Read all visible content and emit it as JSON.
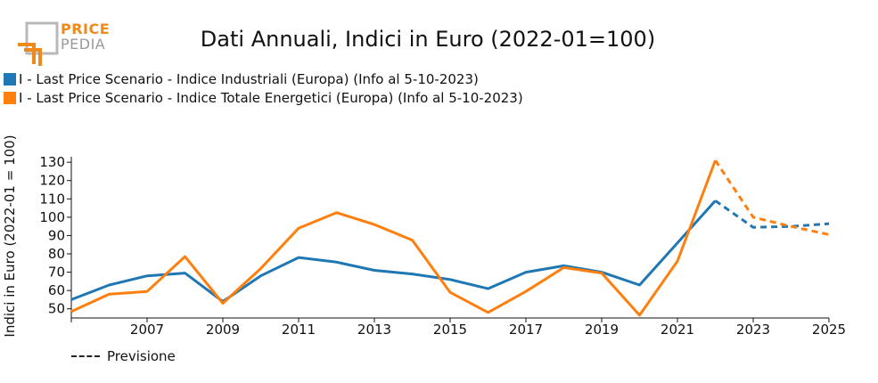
{
  "logo": {
    "line1": "PRICE",
    "line2": "PEDIA"
  },
  "chart_data": {
    "type": "line",
    "title": "Dati Annuali, Indici in Euro (2022-01=100)",
    "ylabel": "Indici in Euro (2022-01 = 100)",
    "xlabel": "",
    "xlim": [
      2005,
      2025
    ],
    "ylim": [
      45,
      133
    ],
    "x_ticks": [
      2007,
      2009,
      2011,
      2013,
      2015,
      2017,
      2019,
      2021,
      2023,
      2025
    ],
    "y_ticks": [
      50,
      60,
      70,
      80,
      90,
      100,
      110,
      120,
      130
    ],
    "grid": false,
    "legend_position": "top-left",
    "forecast_start": 2022,
    "forecast_note": "Previsione",
    "x": [
      2005,
      2006,
      2007,
      2008,
      2009,
      2010,
      2011,
      2012,
      2013,
      2014,
      2015,
      2016,
      2017,
      2018,
      2019,
      2020,
      2021,
      2022,
      2023,
      2024,
      2025
    ],
    "series": [
      {
        "name": "I - Last Price Scenario - Indice Industriali (Europa) (Info al 5-10-2023)",
        "color": "#1f77b4",
        "values": [
          55,
          63,
          68,
          69.5,
          54,
          68,
          78,
          75.5,
          71,
          69,
          66,
          61,
          70,
          73.5,
          70,
          63,
          86,
          109,
          94.5,
          95,
          96.5
        ]
      },
      {
        "name": "I - Last Price Scenario - Indice Totale Energetici (Europa) (Info al 5-10-2023)",
        "color": "#ff7f0e",
        "values": [
          48.5,
          58,
          59.5,
          78.5,
          53,
          72,
          94,
          102.5,
          96,
          87.5,
          59,
          48,
          59.5,
          72.5,
          69.5,
          46.5,
          76,
          131,
          100,
          95,
          90.5
        ]
      }
    ]
  }
}
